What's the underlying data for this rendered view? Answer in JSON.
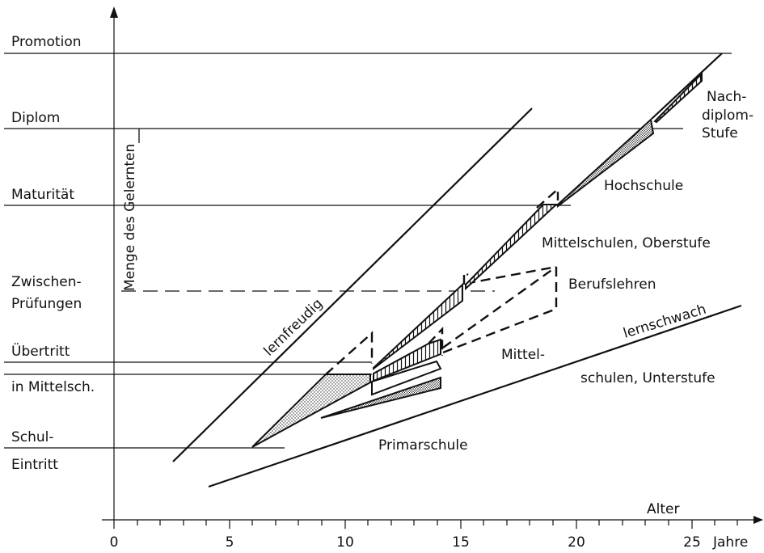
{
  "axis": {
    "x_title": "Alter",
    "x_unit": "Jahre",
    "x_ticks": [
      "0",
      "5",
      "10",
      "15",
      "20",
      "25"
    ],
    "y_title": "Menge des Gelernten"
  },
  "levels": {
    "promotion": "Promotion",
    "diplom": "Diplom",
    "maturitaet": "Maturität",
    "zwischen_1": "Zwischen-",
    "zwischen_2": "Prüfungen",
    "uebertritt_1": "Übertritt",
    "uebertritt_2": "in Mittelsch.",
    "schul_1": "Schul-",
    "schul_2": "Eintritt"
  },
  "regions": {
    "nachdiplom_1": "Nach-",
    "nachdiplom_2": "diplom-",
    "nachdiplom_3": "Stufe",
    "hochschule": "Hochschule",
    "mittelschulen_oberstufe": "Mittelschulen, Oberstufe",
    "berufslehren": "Berufslehren",
    "mittel_unterstufe_1": "Mittel-",
    "mittel_unterstufe_2": "schulen, Unterstufe",
    "primarschule": "Primarschule"
  },
  "lines": {
    "lernfreudig": "lernfreudig",
    "lernschwach": "lernschwach"
  }
}
